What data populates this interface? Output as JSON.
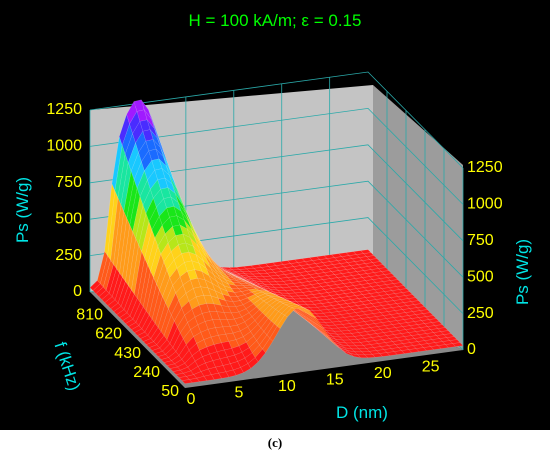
{
  "chart_data": {
    "type": "surface3d",
    "title": "H = 100 kA/m;  ε = 0.15",
    "zlabel": "Ps (W/g)",
    "ylabel": "f (kHz)",
    "xlabel": "D (nm)",
    "z_ticks": [
      "0",
      "250",
      "500",
      "750",
      "1000",
      "1250"
    ],
    "f_ticks": [
      "50",
      "240",
      "430",
      "620",
      "810"
    ],
    "d_ticks": [
      "0",
      "5",
      "10",
      "15",
      "20",
      "25"
    ],
    "xlim": [
      0,
      29
    ],
    "ylim": [
      50,
      1000
    ],
    "zlim": [
      0,
      1250
    ],
    "peak": {
      "D": 5,
      "f": 1000,
      "Ps": 1250
    },
    "colors": {
      "background": "#000000",
      "walls": "#c0c0c0",
      "grid": "#2aa9a9",
      "ticks": "#ffff00",
      "axis_labels": "#00e5e5",
      "title": "#00ff00"
    }
  },
  "caption": "(c)"
}
